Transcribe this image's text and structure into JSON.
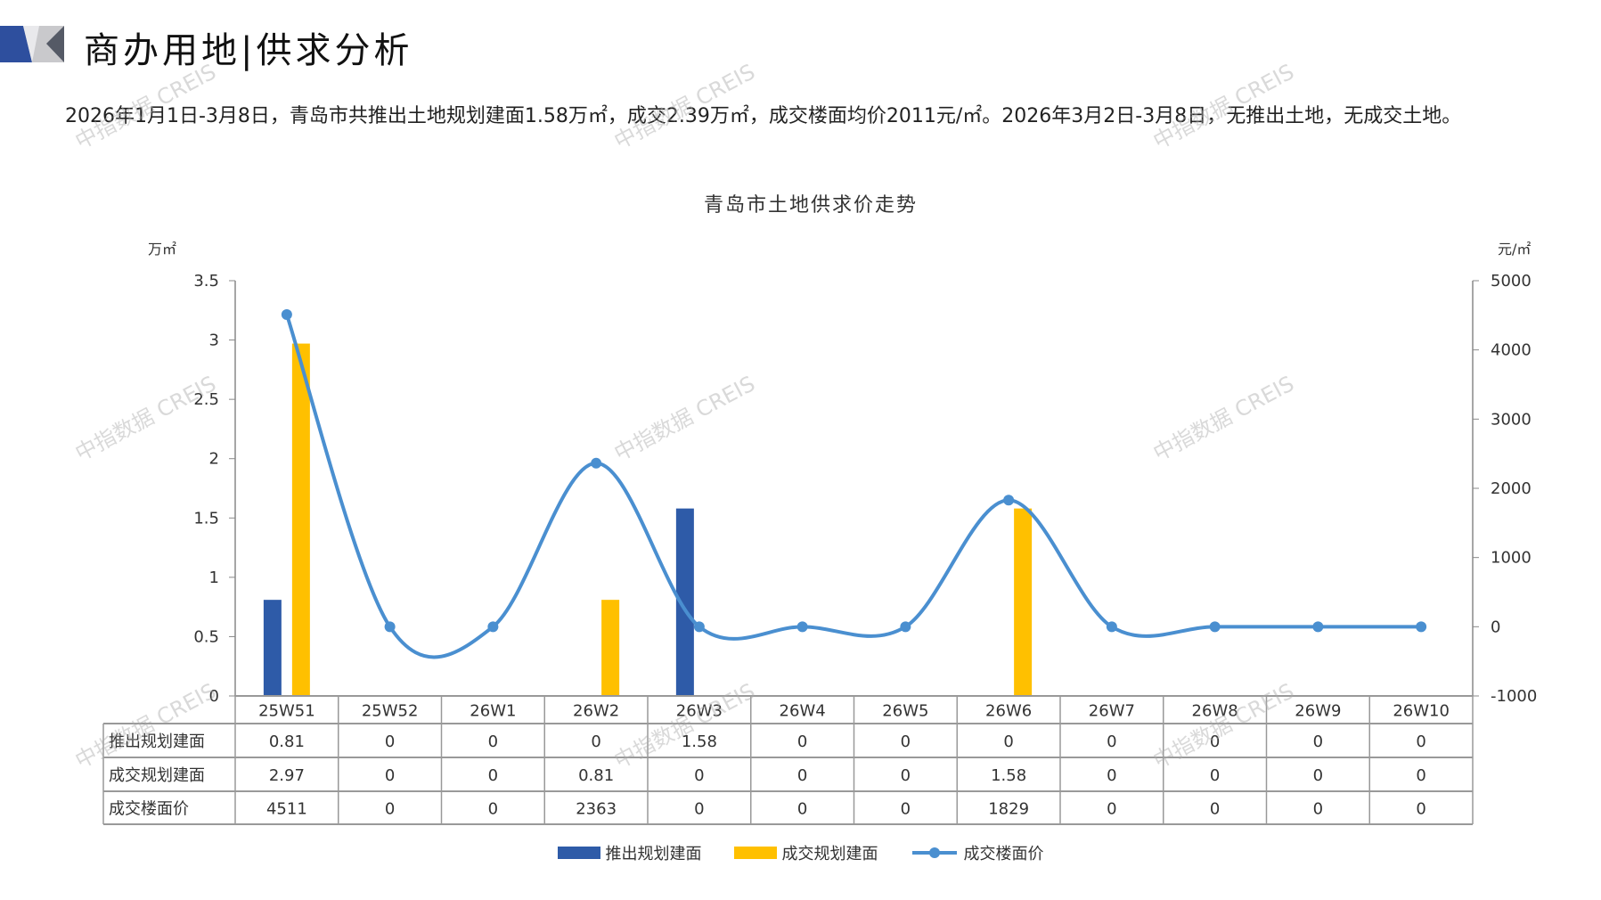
{
  "header": {
    "title": "商办用地|供求分析"
  },
  "summary": "2026年1月1日-3月8日，青岛市共推出土地规划建面1.58万㎡，成交2.39万㎡，成交楼面均价2011元/㎡。2026年3月2日-3月8日，无推出土地，无成交土地。",
  "watermark": "中指数据 CREIS",
  "chart_data": {
    "type": "bar+line",
    "title": "青岛市土地供求价走势",
    "y_left_label": "万㎡",
    "y_right_label": "元/㎡",
    "y_left_lim": [
      0,
      3.5
    ],
    "y_left_ticks": [
      "0",
      "0.5",
      "1",
      "1.5",
      "2",
      "2.5",
      "3",
      "3.5"
    ],
    "y_right_lim": [
      -1000,
      5000
    ],
    "y_right_ticks": [
      "-1000",
      "0",
      "1000",
      "2000",
      "3000",
      "4000",
      "5000"
    ],
    "categories": [
      "25W51",
      "25W52",
      "26W1",
      "26W2",
      "26W3",
      "26W4",
      "26W5",
      "26W6",
      "26W7",
      "26W8",
      "26W9",
      "26W10"
    ],
    "series": [
      {
        "name": "推出规划建面",
        "type": "bar",
        "axis": "left",
        "color": "#2E5BA8",
        "values": [
          0.81,
          0,
          0,
          0,
          1.58,
          0,
          0,
          0,
          0,
          0,
          0,
          0
        ],
        "labels": [
          "0.81",
          "0",
          "0",
          "0",
          "1.58",
          "0",
          "0",
          "0",
          "0",
          "0",
          "0",
          "0"
        ]
      },
      {
        "name": "成交规划建面",
        "type": "bar",
        "axis": "left",
        "color": "#FFC000",
        "values": [
          2.97,
          0,
          0,
          0.81,
          0,
          0,
          0,
          1.58,
          0,
          0,
          0,
          0
        ],
        "labels": [
          "2.97",
          "0",
          "0",
          "0.81",
          "0",
          "0",
          "0",
          "1.58",
          "0",
          "0",
          "0",
          "0"
        ]
      },
      {
        "name": "成交楼面价",
        "type": "line",
        "axis": "right",
        "color": "#4A8FD0",
        "values": [
          4511,
          0,
          0,
          2363,
          0,
          0,
          0,
          1829,
          0,
          0,
          0,
          0
        ],
        "labels": [
          "4511",
          "0",
          "0",
          "2363",
          "0",
          "0",
          "0",
          "1829",
          "0",
          "0",
          "0",
          "0"
        ]
      }
    ],
    "data_table": true,
    "legend": "bottom"
  }
}
